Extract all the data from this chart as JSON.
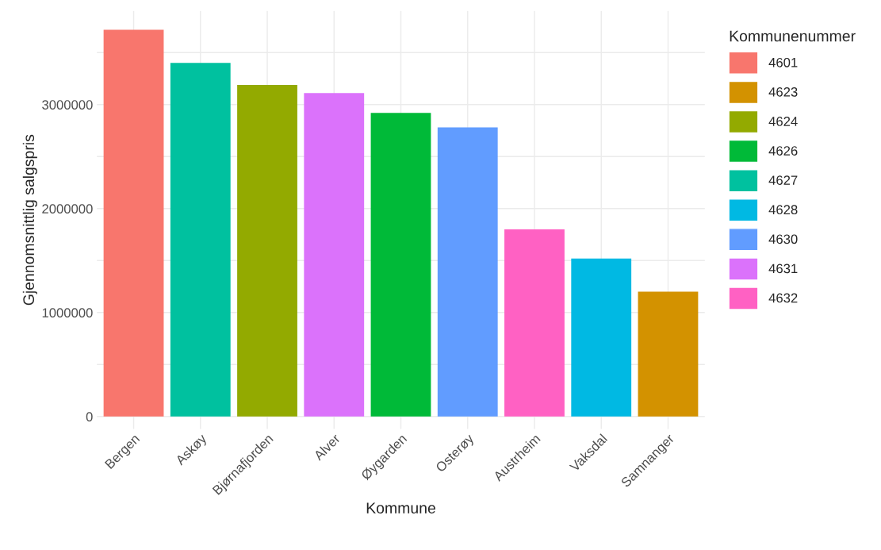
{
  "chart_data": {
    "type": "bar",
    "xlabel": "Kommune",
    "ylabel": "Gjennomsnittlig salgspris",
    "legend_title": "Kommunenummer",
    "categories": [
      "Bergen",
      "Askøy",
      "Bjørnafjorden",
      "Alver",
      "Øygarden",
      "Osterøy",
      "Austrheim",
      "Vaksdal",
      "Samnanger"
    ],
    "series": [
      {
        "name": "4601",
        "color": "#f8766d",
        "values": [
          3720000,
          null,
          null,
          null,
          null,
          null,
          null,
          null,
          null
        ]
      },
      {
        "name": "4623",
        "color": "#d39200",
        "values": [
          null,
          null,
          null,
          null,
          null,
          null,
          null,
          null,
          1200000
        ]
      },
      {
        "name": "4624",
        "color": "#93aa00",
        "values": [
          null,
          null,
          3190000,
          null,
          null,
          null,
          null,
          null,
          null
        ]
      },
      {
        "name": "4626",
        "color": "#00ba38",
        "values": [
          null,
          null,
          null,
          null,
          2920000,
          null,
          null,
          null,
          null
        ]
      },
      {
        "name": "4627",
        "color": "#00c19f",
        "values": [
          null,
          3400000,
          null,
          null,
          null,
          null,
          null,
          null,
          null
        ]
      },
      {
        "name": "4628",
        "color": "#00b9e3",
        "values": [
          null,
          null,
          null,
          null,
          null,
          null,
          null,
          1520000,
          null
        ]
      },
      {
        "name": "4630",
        "color": "#619cff",
        "values": [
          null,
          null,
          null,
          null,
          null,
          2780000,
          null,
          null,
          null
        ]
      },
      {
        "name": "4631",
        "color": "#db72fb",
        "values": [
          null,
          null,
          null,
          3110000,
          null,
          null,
          null,
          null,
          null
        ]
      },
      {
        "name": "4632",
        "color": "#ff61c3",
        "values": [
          null,
          null,
          null,
          null,
          null,
          null,
          1800000,
          null,
          null
        ]
      }
    ],
    "ylim": [
      -120000,
      3900000
    ],
    "yticks": [
      0,
      {
        "value": 500000,
        "label": null
      },
      1000000,
      {
        "value": 1500000,
        "label": null
      },
      2000000,
      {
        "value": 2500000,
        "label": null
      },
      3000000,
      {
        "value": 3500000,
        "label": null
      }
    ],
    "grid": true,
    "legend": "right"
  }
}
